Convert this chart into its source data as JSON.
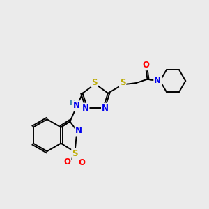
{
  "bg_color": "#ebebeb",
  "bond_color": "#000000",
  "atom_colors": {
    "N": "#0000ee",
    "S": "#bbaa00",
    "O": "#ff0000",
    "H": "#4488aa",
    "C": "#000000"
  },
  "lw": 1.4,
  "fs": 8.5
}
